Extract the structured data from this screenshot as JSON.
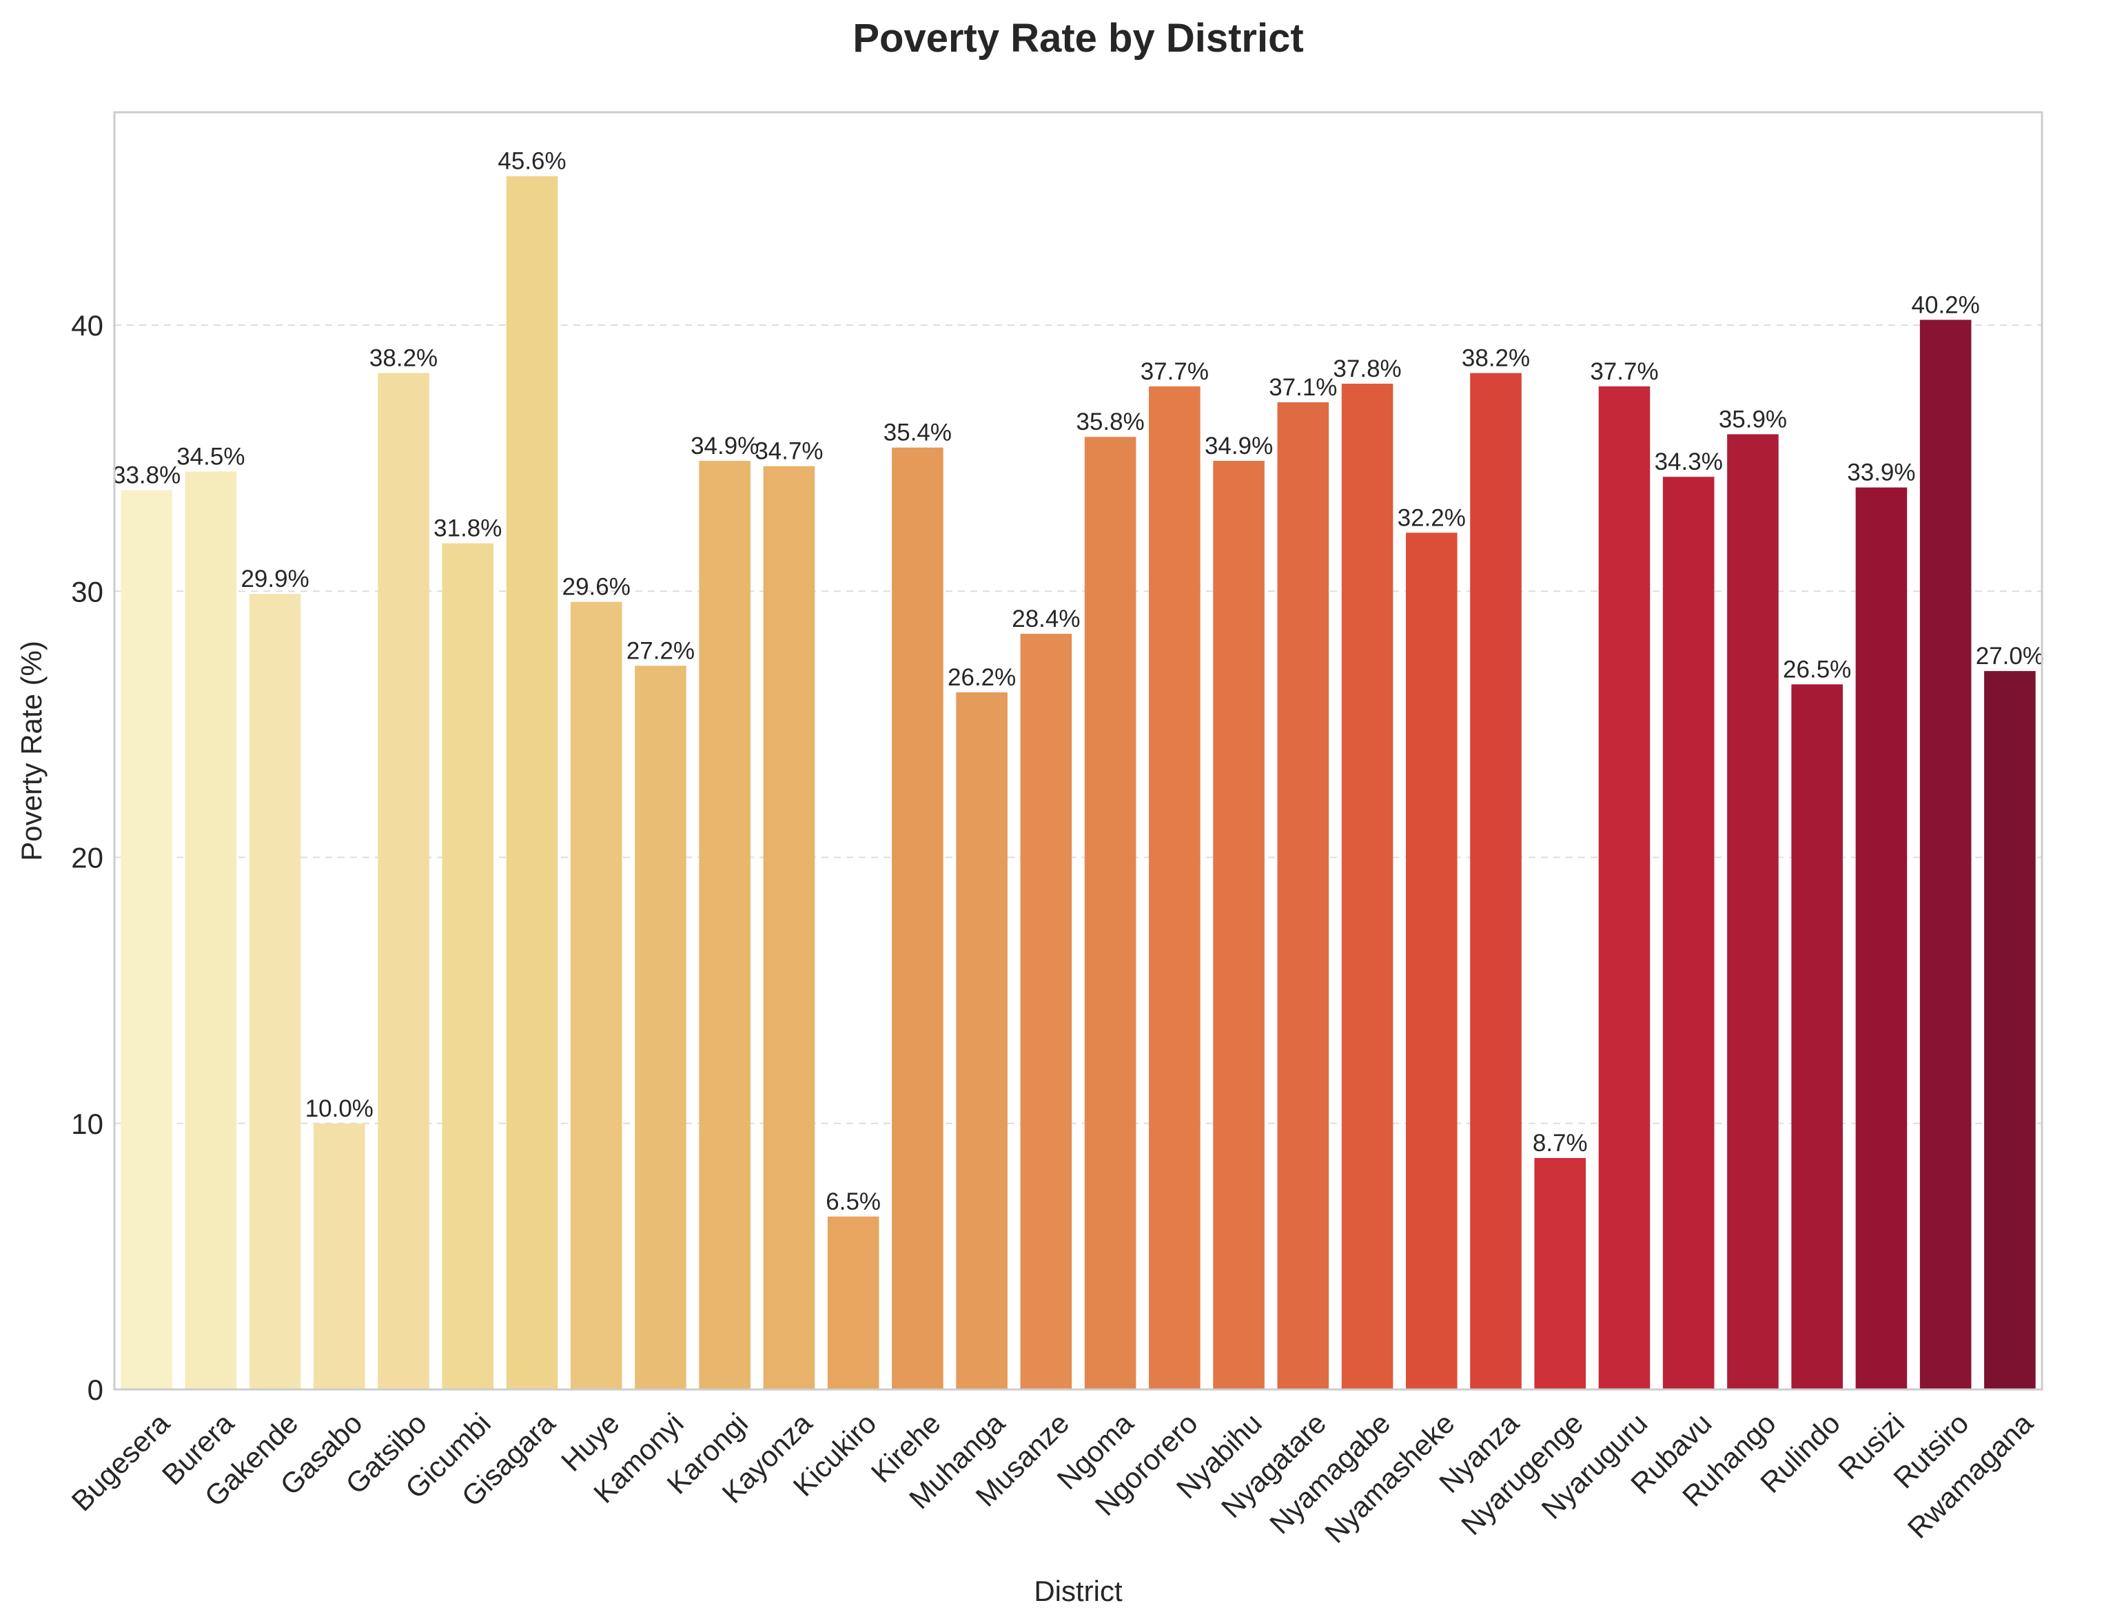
{
  "chart_data": {
    "type": "bar",
    "title": "Poverty Rate by District",
    "xlabel": "District",
    "ylabel": "Poverty Rate (%)",
    "ylim": [
      0,
      48
    ],
    "yticks": [
      0,
      10,
      20,
      30,
      40
    ],
    "grid": "y-dashed",
    "value_label_format": "{v}%",
    "categories": [
      "Bugesera",
      "Burera",
      "Gakende",
      "Gasabo",
      "Gatsibo",
      "Gicumbi",
      "Gisagara",
      "Huye",
      "Kamonyi",
      "Karongi",
      "Kayonza",
      "Kicukiro",
      "Kirehe",
      "Muhanga",
      "Musanze",
      "Ngoma",
      "Ngororero",
      "Nyabihu",
      "Nyagatare",
      "Nyamagabe",
      "Nyamasheke",
      "Nyanza",
      "Nyarugenge",
      "Nyaruguru",
      "Rubavu",
      "Ruhango",
      "Rulindo",
      "Rusizi",
      "Rutsiro",
      "Rwamagana"
    ],
    "values": [
      33.8,
      34.5,
      29.9,
      10.0,
      38.2,
      31.8,
      45.6,
      29.6,
      27.2,
      34.9,
      34.7,
      6.5,
      35.4,
      26.2,
      28.4,
      35.8,
      37.7,
      34.9,
      37.1,
      37.8,
      32.2,
      38.2,
      8.7,
      37.7,
      34.3,
      35.9,
      26.5,
      33.9,
      40.2,
      27.0
    ],
    "colors": [
      "#f8f1c7",
      "#f6ebbb",
      "#f4e5b0",
      "#f3e0a6",
      "#f2dc9f",
      "#f0d895",
      "#eed48b",
      "#ecc67e",
      "#eabd74",
      "#e8b76d",
      "#e8b26a",
      "#e7a55f",
      "#e59a59",
      "#e59b5a",
      "#e48c51",
      "#e3864e",
      "#e37c49",
      "#e27546",
      "#e06a42",
      "#de5b3c",
      "#db4f39",
      "#d84437",
      "#ce3137",
      "#c52939",
      "#bc2237",
      "#ae1d36",
      "#a61a36",
      "#971533",
      "#881431",
      "#7a1230"
    ]
  }
}
